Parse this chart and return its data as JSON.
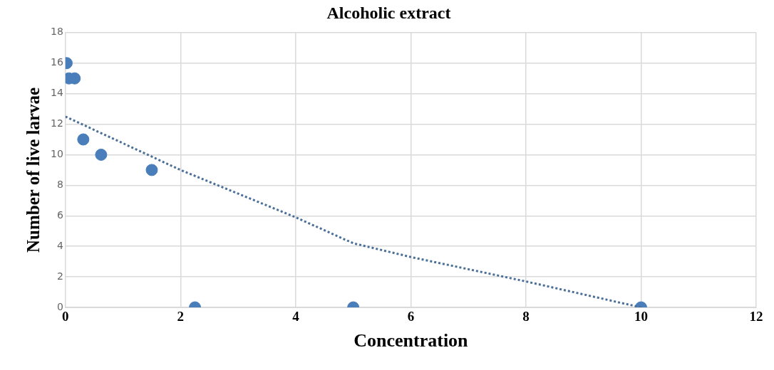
{
  "chart_data": {
    "type": "scatter",
    "title": "Alcoholic extract",
    "xlabel": "Concentration",
    "ylabel": "Number of live larvae",
    "xlim": [
      0,
      12
    ],
    "xticks": [
      0,
      2,
      4,
      6,
      8,
      10,
      12
    ],
    "ylim": [
      0,
      18
    ],
    "yticks": [
      0,
      2,
      4,
      6,
      8,
      10,
      12,
      14,
      16,
      18
    ],
    "grid": true,
    "legend": false,
    "marker": "circle",
    "series": [
      {
        "color": "#4a7ebb",
        "x": [
          0.02,
          0.06,
          0.16,
          0.31,
          0.62,
          1.5,
          2.25,
          5,
          10
        ],
        "values": [
          16,
          15,
          15,
          11,
          10,
          9,
          0,
          0,
          0
        ]
      },
      {
        "type": "line",
        "color": "#4a6f98",
        "line_style": "dotted",
        "marker": "none",
        "x": [
          0,
          2,
          4,
          5,
          6,
          8,
          10
        ],
        "values": [
          12.5,
          9.0,
          5.9,
          4.2,
          3.3,
          1.7,
          0
        ]
      }
    ]
  }
}
